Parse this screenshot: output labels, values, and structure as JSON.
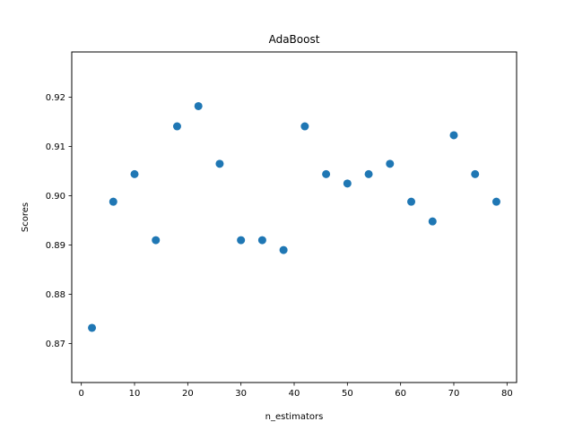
{
  "chart_data": {
    "type": "scatter",
    "title": "AdaBoost",
    "xlabel": "n_estimators",
    "ylabel": "Scores",
    "xlim": [
      -1.8,
      81.8
    ],
    "ylim": [
      0.8621,
      0.9292
    ],
    "xticks": [
      0,
      10,
      20,
      30,
      40,
      50,
      60,
      70,
      80
    ],
    "yticks": [
      0.87,
      0.88,
      0.89,
      0.9,
      0.91,
      0.92
    ],
    "ytick_labels": [
      "0.87",
      "0.88",
      "0.89",
      "0.90",
      "0.91",
      "0.92"
    ],
    "grid": false,
    "marker_color": "#1f77b4",
    "x": [
      2,
      6,
      10,
      14,
      18,
      22,
      26,
      30,
      34,
      38,
      42,
      46,
      50,
      54,
      58,
      62,
      66,
      70,
      74,
      78
    ],
    "y": [
      0.8732,
      0.8988,
      0.9044,
      0.891,
      0.9141,
      0.9182,
      0.9065,
      0.891,
      0.891,
      0.889,
      0.9141,
      0.9044,
      0.9025,
      0.9044,
      0.9065,
      0.8988,
      0.8948,
      0.9123,
      0.9044,
      0.8988
    ]
  }
}
